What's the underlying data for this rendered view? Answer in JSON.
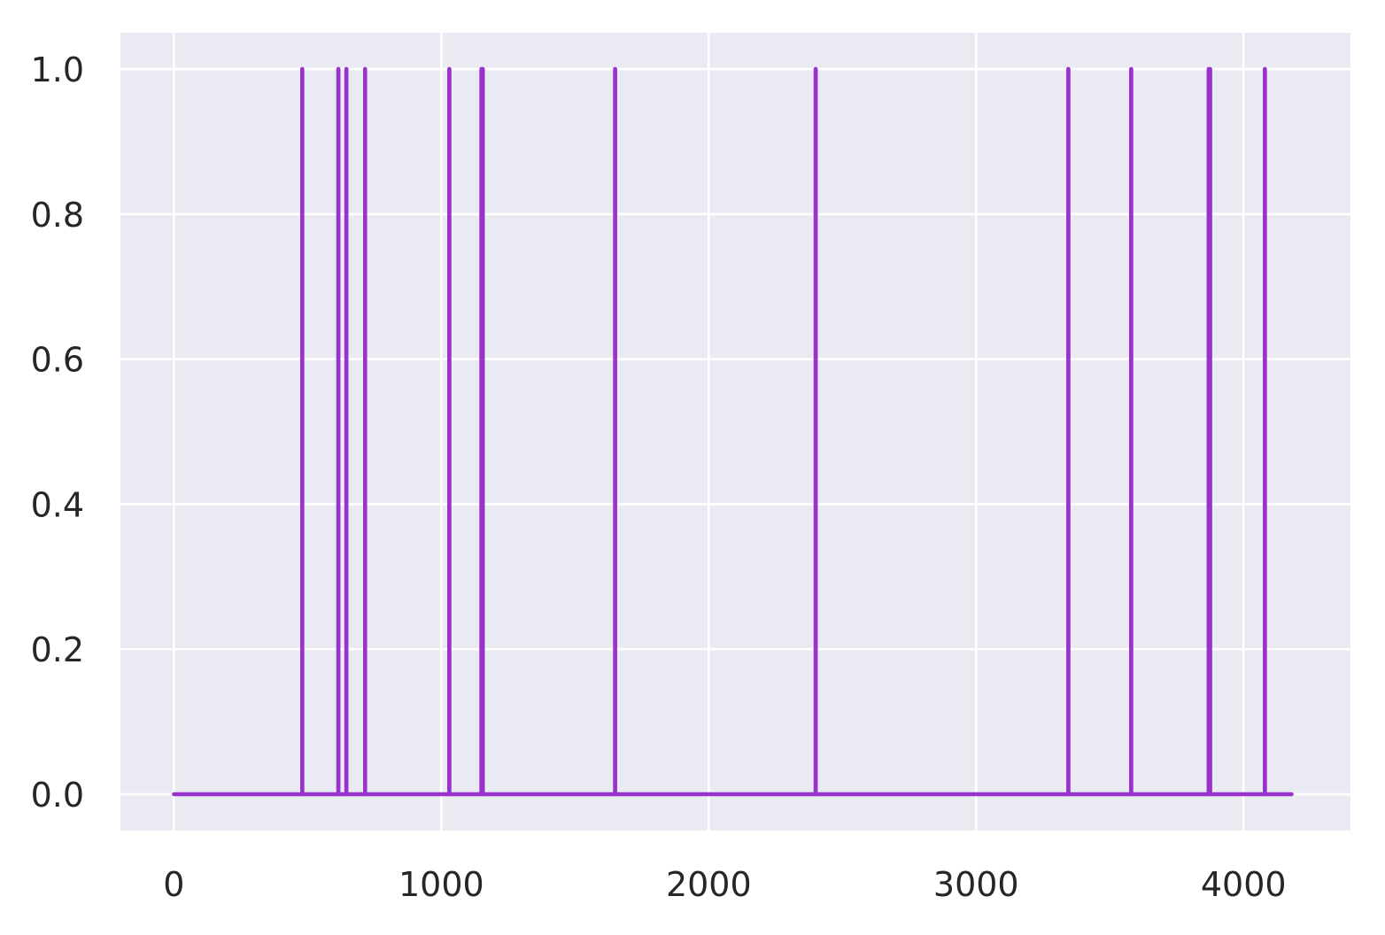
{
  "chart_data": {
    "type": "line",
    "title": "",
    "xlabel": "",
    "ylabel": "",
    "xlim": [
      -200,
      4400
    ],
    "ylim": [
      -0.05,
      1.05
    ],
    "xticks": [
      0,
      1000,
      2000,
      3000,
      4000
    ],
    "xtick_labels": [
      "0",
      "1000",
      "2000",
      "3000",
      "4000"
    ],
    "yticks": [
      0.0,
      0.2,
      0.4,
      0.6,
      0.8,
      1.0
    ],
    "ytick_labels": [
      "0.0",
      "0.2",
      "0.4",
      "0.6",
      "0.8",
      "1.0"
    ],
    "grid": true,
    "background_color": "#eaeaf2",
    "grid_color": "#ffffff",
    "series": [
      {
        "color": "#9932cc",
        "x_start": 0,
        "x_end": 4180,
        "baseline": 0,
        "spike_value": 1,
        "spike_x": [
          480,
          615,
          645,
          715,
          1030,
          1150,
          1155,
          1650,
          2400,
          3345,
          3580,
          3870,
          3875,
          4080
        ]
      }
    ]
  }
}
